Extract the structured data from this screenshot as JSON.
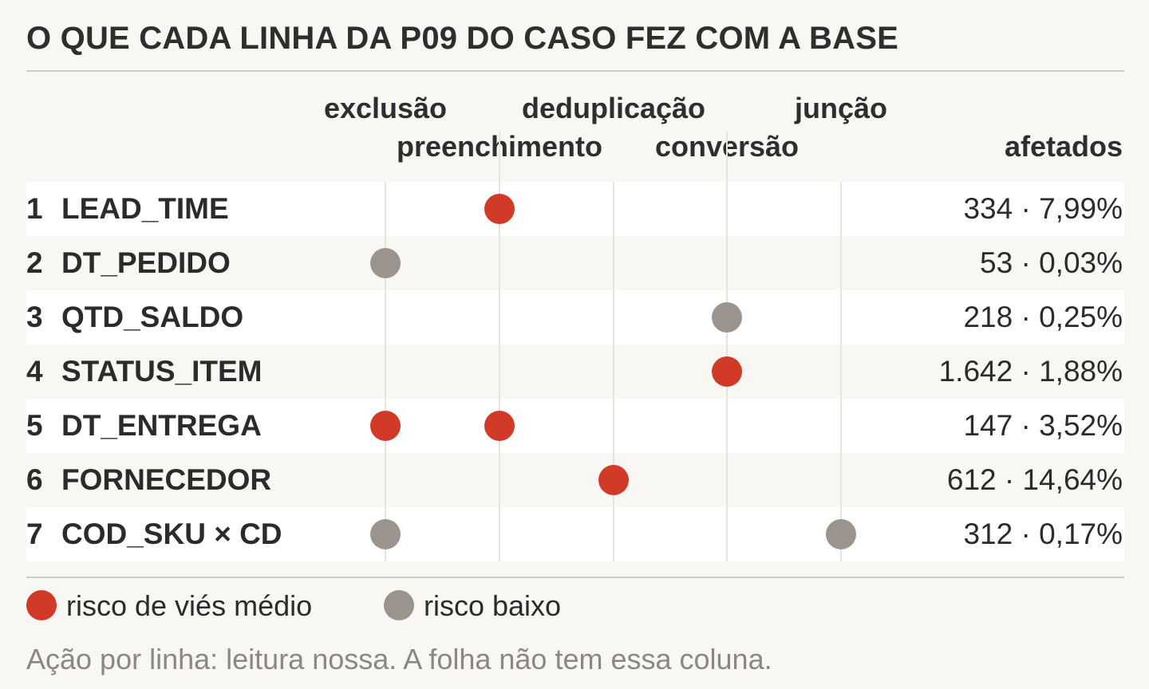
{
  "title": "O QUE CADA LINHA DA P09 DO CASO FEZ COM A BASE",
  "chart_data": {
    "type": "table",
    "columns": [
      "exclusão",
      "preenchimento",
      "deduplicação",
      "conversão",
      "junção"
    ],
    "value_header": "afetados",
    "rows": [
      {
        "num": "1",
        "label": "LEAD_TIME",
        "value": "334 · 7,99%",
        "actions": [
          {
            "col": 1,
            "risk": "medio"
          }
        ]
      },
      {
        "num": "2",
        "label": "DT_PEDIDO",
        "value": "53 · 0,03%",
        "actions": [
          {
            "col": 0,
            "risk": "baixo"
          }
        ]
      },
      {
        "num": "3",
        "label": "QTD_SALDO",
        "value": "218 · 0,25%",
        "actions": [
          {
            "col": 3,
            "risk": "baixo"
          }
        ]
      },
      {
        "num": "4",
        "label": "STATUS_ITEM",
        "value": "1.642 · 1,88%",
        "actions": [
          {
            "col": 3,
            "risk": "medio"
          }
        ]
      },
      {
        "num": "5",
        "label": "DT_ENTREGA",
        "value": "147 · 3,52%",
        "actions": [
          {
            "col": 0,
            "risk": "medio"
          },
          {
            "col": 1,
            "risk": "medio"
          }
        ]
      },
      {
        "num": "6",
        "label": "FORNECEDOR",
        "value": "612 · 14,64%",
        "actions": [
          {
            "col": 2,
            "risk": "medio"
          }
        ]
      },
      {
        "num": "7",
        "label": "COD_SKU × CD",
        "value": "312 · 0,17%",
        "actions": [
          {
            "col": 0,
            "risk": "baixo"
          },
          {
            "col": 4,
            "risk": "baixo"
          }
        ]
      }
    ],
    "legend": [
      {
        "key": "medio",
        "label": "risco de viés médio",
        "color": "#d03a27"
      },
      {
        "key": "baixo",
        "label": "risco baixo",
        "color": "#9b948d"
      }
    ]
  },
  "note": "Ação por linha: leitura nossa. A folha não tem essa coluna."
}
